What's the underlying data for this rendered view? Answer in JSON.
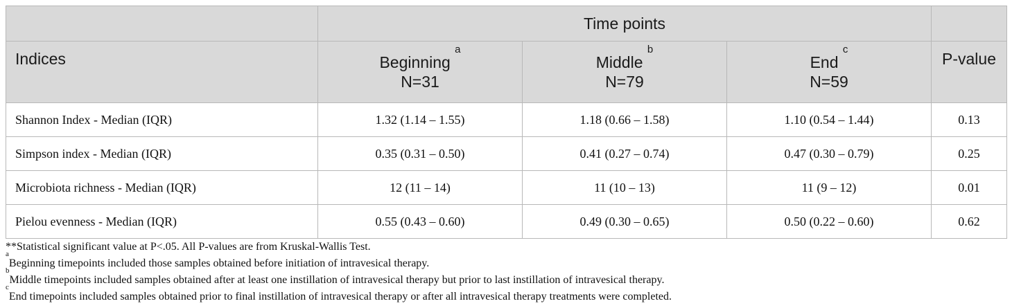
{
  "header": {
    "time_points": "Time points",
    "indices": "Indices",
    "pvalue": "P-value",
    "columns": [
      {
        "name": "Beginning",
        "sup": "a",
        "n": "N=31"
      },
      {
        "name": "Middle",
        "sup": "b",
        "n": "N=79"
      },
      {
        "name": "End",
        "sup": "c",
        "n": "N=59"
      }
    ]
  },
  "rows": [
    {
      "label": "Shannon Index - Median (IQR)",
      "beginning": "1.32 (1.14 – 1.55)",
      "middle": "1.18 (0.66 – 1.58)",
      "end": "1.10 (0.54 – 1.44)",
      "pvalue": "0.13"
    },
    {
      "label": "Simpson index - Median (IQR)",
      "beginning": "0.35 (0.31 – 0.50)",
      "middle": "0.41 (0.27 – 0.74)",
      "end": "0.47 (0.30 – 0.79)",
      "pvalue": "0.25"
    },
    {
      "label": "Microbiota richness - Median (IQR)",
      "beginning": "12 (11 – 14)",
      "middle": "11 (10 – 13)",
      "end": "11 (9 – 12)",
      "pvalue": "0.01"
    },
    {
      "label": "Pielou evenness - Median (IQR)",
      "beginning": "0.55 (0.43 – 0.60)",
      "middle": "0.49 (0.30 – 0.65)",
      "end": "0.50 (0.22 – 0.60)",
      "pvalue": "0.62"
    }
  ],
  "footnotes": [
    {
      "sup": "",
      "text": "**Statistical significant value at P<.05. All P-values are from Kruskal-Wallis Test."
    },
    {
      "sup": "a",
      "text": "Beginning timepoints included those samples obtained before initiation of intravesical therapy."
    },
    {
      "sup": "b",
      "text": "Middle timepoints included samples obtained after at least one instillation of intravesical therapy but prior to last instillation of intravesical therapy."
    },
    {
      "sup": "c",
      "text": "End timepoints included samples obtained prior to final instillation of intravesical therapy or after all intravesical therapy treatments were completed."
    }
  ]
}
